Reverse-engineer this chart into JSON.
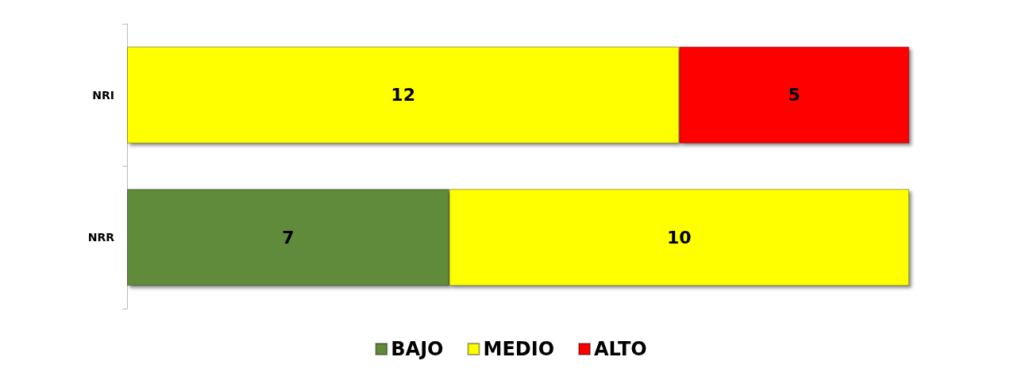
{
  "chart_data": {
    "type": "bar",
    "orientation": "horizontal",
    "stacked": true,
    "categories": [
      "NRI",
      "NRR"
    ],
    "series": [
      {
        "name": "BAJO",
        "color": "#5f8b3a",
        "values": [
          null,
          7
        ]
      },
      {
        "name": "MEDIO",
        "color": "#ffff00",
        "values": [
          12,
          10
        ]
      },
      {
        "name": "ALTO",
        "color": "#ff0000",
        "values": [
          5,
          null
        ]
      }
    ],
    "xlim": [
      0,
      17
    ],
    "tick_labels": "y",
    "data_labels": true,
    "legend": "bottom",
    "grid": false
  }
}
